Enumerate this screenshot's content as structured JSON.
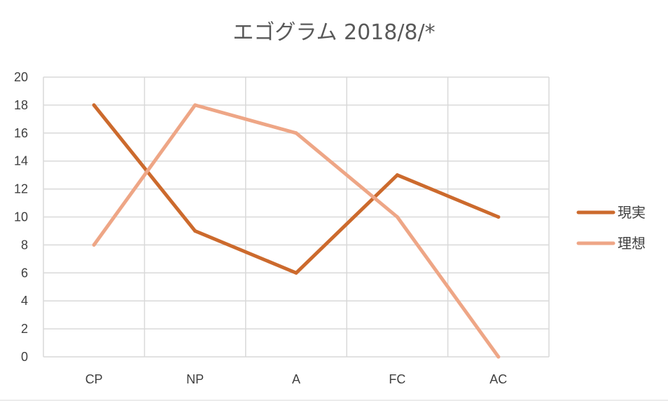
{
  "chart_data": {
    "type": "line",
    "title": "エゴグラム 2018/8/*",
    "categories": [
      "CP",
      "NP",
      "A",
      "FC",
      "AC"
    ],
    "series": [
      {
        "name": "現実",
        "values": [
          18,
          9,
          6,
          13,
          10
        ],
        "color": "#cc6a2d"
      },
      {
        "name": "理想",
        "values": [
          8,
          18,
          16,
          10,
          0
        ],
        "color": "#eea686"
      }
    ],
    "ylim": [
      0,
      20
    ],
    "yticks": [
      0,
      2,
      4,
      6,
      8,
      10,
      12,
      14,
      16,
      18,
      20
    ],
    "grid": true,
    "legend": "right"
  }
}
